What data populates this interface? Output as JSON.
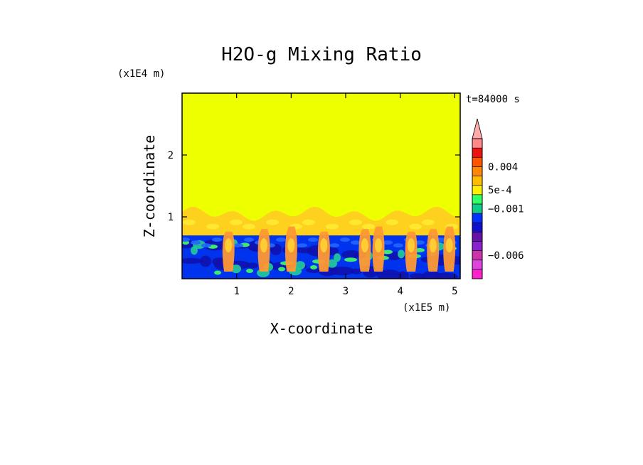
{
  "chart_data": {
    "type": "heatmap",
    "title": "H2O-g Mixing Ratio",
    "xlabel": "X-coordinate",
    "ylabel": "Z-coordinate",
    "x_multiplier": "(x1E5 m)",
    "z_multiplier": "(x1E4 m)",
    "time_label": "t=84000 s",
    "xlim": [
      0,
      5.1
    ],
    "zlim": [
      0,
      3.0
    ],
    "x_ticks": [
      {
        "value": 1,
        "label": "1"
      },
      {
        "value": 2,
        "label": "2"
      },
      {
        "value": 3,
        "label": "3"
      },
      {
        "value": 4,
        "label": "4"
      },
      {
        "value": 5,
        "label": "5"
      }
    ],
    "z_ticks": [
      {
        "value": 1,
        "label": "1"
      },
      {
        "value": 2,
        "label": "2"
      }
    ],
    "fields": {
      "upper_value": 0,
      "upper_color": "#eeff00",
      "transition_top_z": 1.05,
      "transition_color": "#ffcc22",
      "boundary_z": 0.7,
      "lower_color": "#0033ee",
      "plume_color": "#ff9933",
      "plume_x": [
        0.85,
        1.5,
        2.0,
        2.6,
        3.35,
        3.6,
        4.2,
        4.6,
        4.9
      ]
    },
    "colorbar": {
      "levels": [
        {
          "color": "#ff22cc"
        },
        {
          "color": "#dd44dd"
        },
        {
          "color": "#cc33aa"
        },
        {
          "color": "#8822cc"
        },
        {
          "color": "#6611aa"
        },
        {
          "color": "#1111cc"
        },
        {
          "color": "#0033ff"
        },
        {
          "color": "#11cc88"
        },
        {
          "color": "#33ff66"
        },
        {
          "color": "#ffee00"
        },
        {
          "color": "#ffbb00"
        },
        {
          "color": "#ff8800"
        },
        {
          "color": "#ff5500"
        },
        {
          "color": "#ee1111"
        },
        {
          "color": "#ff8888"
        }
      ],
      "top_arrow_color": "#ffaaaa",
      "labels": [
        {
          "text": "0.004",
          "level": 12
        },
        {
          "text": "5e-4",
          "level": 9.5
        },
        {
          "text": "−0.001",
          "level": 7.5
        },
        {
          "text": "−0.006",
          "level": 2.5
        }
      ]
    }
  }
}
